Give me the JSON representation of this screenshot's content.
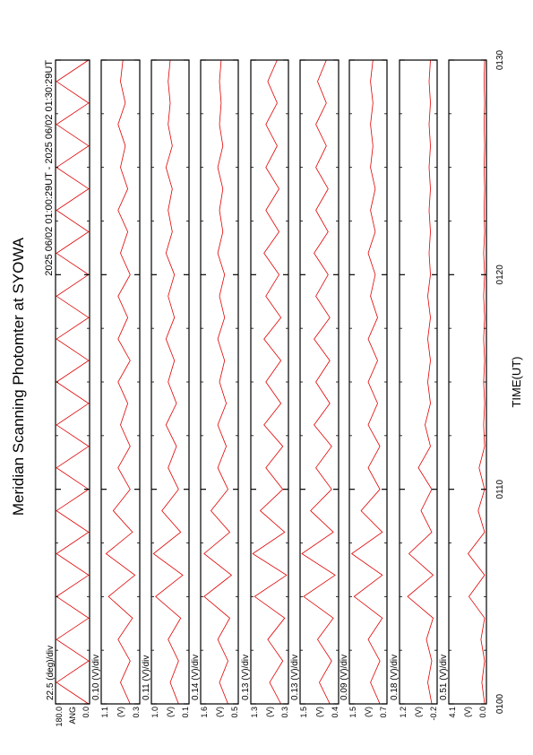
{
  "chart_data": {
    "type": "line",
    "title": "Meridian Scanning Photomter at SYOWA",
    "subtitle": "2025 06/02 01:00:29UT - 2025 06/02 01:30:29UT",
    "xlabel": "TIME(UT)",
    "color": "#e00000",
    "xlim": [
      0,
      30
    ],
    "xticks": [
      {
        "value": 0,
        "label": "0100"
      },
      {
        "value": 10,
        "label": "0110"
      },
      {
        "value": 20,
        "label": "0120"
      },
      {
        "value": 30,
        "label": "0130"
      }
    ],
    "minor_xticks": [
      2.5,
      5,
      7.5,
      12.5,
      15,
      17.5,
      22.5,
      25,
      27.5
    ],
    "x": [
      0,
      1,
      2,
      3,
      4,
      5,
      6,
      7,
      8,
      9,
      10,
      11,
      12,
      13,
      14,
      15,
      16,
      17,
      18,
      19,
      20,
      21,
      22,
      23,
      24,
      25,
      26,
      27,
      28,
      29,
      30
    ],
    "panels": [
      {
        "scale": "22.5 (deg)/div",
        "unit": "ANG",
        "ylim": [
          0,
          180
        ],
        "yticks": [
          {
            "value": 0,
            "label": "0.0"
          },
          {
            "value": 180,
            "label": "180.0"
          }
        ],
        "values": [
          5,
          175,
          5,
          175,
          5,
          175,
          5,
          175,
          5,
          175,
          5,
          175,
          5,
          175,
          5,
          175,
          5,
          175,
          5,
          175,
          5,
          175,
          5,
          175,
          5,
          175,
          5,
          175,
          5,
          175,
          5
        ]
      },
      {
        "scale": "0.10 (V)/div",
        "unit": "(V)",
        "ylim": [
          0.3,
          1.1
        ],
        "yticks": [
          0.3,
          1.1
        ],
        "values": [
          0.5,
          0.7,
          0.5,
          0.75,
          0.45,
          0.95,
          0.4,
          1.0,
          0.45,
          0.85,
          0.5,
          0.75,
          0.5,
          0.7,
          0.55,
          0.75,
          0.5,
          0.75,
          0.55,
          0.75,
          0.5,
          0.7,
          0.55,
          0.75,
          0.55,
          0.7,
          0.6,
          0.75,
          0.6,
          0.7,
          0.65
        ]
      },
      {
        "scale": "0.11 (V)/div",
        "unit": "(V)",
        "ylim": [
          0.1,
          1.0
        ],
        "yticks": [
          {
            "value": 0.1,
            "label": "0.1"
          },
          {
            "value": 1.0,
            "label": "1.0"
          }
        ],
        "values": [
          0.35,
          0.55,
          0.35,
          0.6,
          0.3,
          0.9,
          0.25,
          0.95,
          0.3,
          0.75,
          0.35,
          0.6,
          0.4,
          0.65,
          0.4,
          0.6,
          0.45,
          0.65,
          0.45,
          0.6,
          0.45,
          0.65,
          0.5,
          0.6,
          0.5,
          0.65,
          0.5,
          0.6,
          0.55,
          0.6,
          0.55
        ]
      },
      {
        "scale": "0.14 (V)/div",
        "unit": "(V)",
        "ylim": [
          0.5,
          1.6
        ],
        "yticks": [
          0.5,
          1.6
        ],
        "values": [
          0.8,
          1.05,
          0.8,
          1.1,
          0.75,
          1.5,
          0.7,
          1.5,
          0.75,
          1.3,
          0.8,
          1.1,
          0.85,
          1.1,
          0.85,
          1.05,
          0.9,
          1.1,
          0.9,
          1.05,
          0.9,
          1.1,
          0.95,
          1.05,
          0.95,
          1.1,
          0.95,
          1.05,
          1.0,
          1.05,
          1.0
        ]
      },
      {
        "scale": "0.13 (V)/div",
        "unit": "(V)",
        "ylim": [
          0.3,
          1.3
        ],
        "yticks": [
          0.3,
          1.3
        ],
        "values": [
          0.5,
          0.8,
          0.45,
          0.85,
          0.4,
          1.2,
          0.35,
          1.25,
          0.4,
          1.05,
          0.45,
          0.9,
          0.45,
          0.95,
          0.5,
          0.9,
          0.5,
          0.95,
          0.5,
          0.9,
          0.55,
          0.95,
          0.55,
          0.9,
          0.55,
          0.9,
          0.6,
          0.9,
          0.6,
          0.85,
          0.6
        ]
      },
      {
        "scale": "0.13 (V)/div",
        "unit": "(V)",
        "ylim": [
          0.4,
          1.5
        ],
        "yticks": [
          0.4,
          1.5
        ],
        "values": [
          0.65,
          0.95,
          0.6,
          1.0,
          0.55,
          1.4,
          0.5,
          1.45,
          0.55,
          1.2,
          0.6,
          1.05,
          0.6,
          1.1,
          0.65,
          1.05,
          0.65,
          1.1,
          0.65,
          1.05,
          0.7,
          1.1,
          0.7,
          1.05,
          0.7,
          1.05,
          0.75,
          1.05,
          0.75,
          1.0,
          0.75
        ]
      },
      {
        "scale": "0.09 (V)/div",
        "unit": "(V)",
        "ylim": [
          0.7,
          1.5
        ],
        "yticks": [
          0.7,
          1.5
        ],
        "values": [
          0.85,
          1.05,
          0.85,
          1.1,
          0.8,
          1.4,
          0.8,
          1.45,
          0.8,
          1.25,
          0.85,
          1.1,
          0.85,
          1.1,
          0.9,
          1.1,
          0.9,
          1.1,
          0.9,
          1.05,
          0.95,
          1.1,
          0.95,
          1.05,
          0.95,
          1.05,
          1.0,
          1.05,
          1.0,
          1.05,
          1.0
        ]
      },
      {
        "scale": "0.18 (V)/div",
        "unit": "(V)",
        "ylim": [
          -0.2,
          1.2
        ],
        "yticks": [
          -0.2,
          1.2
        ],
        "values": [
          0.0,
          0.15,
          0.0,
          0.2,
          -0.05,
          0.9,
          -0.05,
          0.85,
          0.0,
          0.4,
          0.0,
          0.5,
          0.05,
          0.25,
          0.05,
          0.15,
          0.05,
          0.15,
          0.05,
          0.15,
          0.05,
          0.1,
          0.05,
          0.1,
          0.05,
          0.1,
          0.05,
          0.1,
          0.05,
          0.1,
          0.05
        ]
      },
      {
        "scale": "0.51 (V)/div",
        "unit": "(V)",
        "ylim": [
          0,
          4.1
        ],
        "yticks": [
          {
            "value": 0,
            "label": "0.0"
          },
          4.1
        ],
        "values": [
          0.2,
          0.5,
          0.2,
          0.6,
          0.2,
          1.9,
          0.2,
          2.0,
          0.2,
          0.9,
          0.2,
          0.8,
          0.2,
          0.3,
          0.2,
          0.3,
          0.2,
          0.3,
          0.2,
          0.3,
          0.2,
          0.3,
          0.2,
          0.25,
          0.2,
          0.25,
          0.2,
          0.25,
          0.2,
          0.25,
          0.2
        ]
      }
    ]
  }
}
